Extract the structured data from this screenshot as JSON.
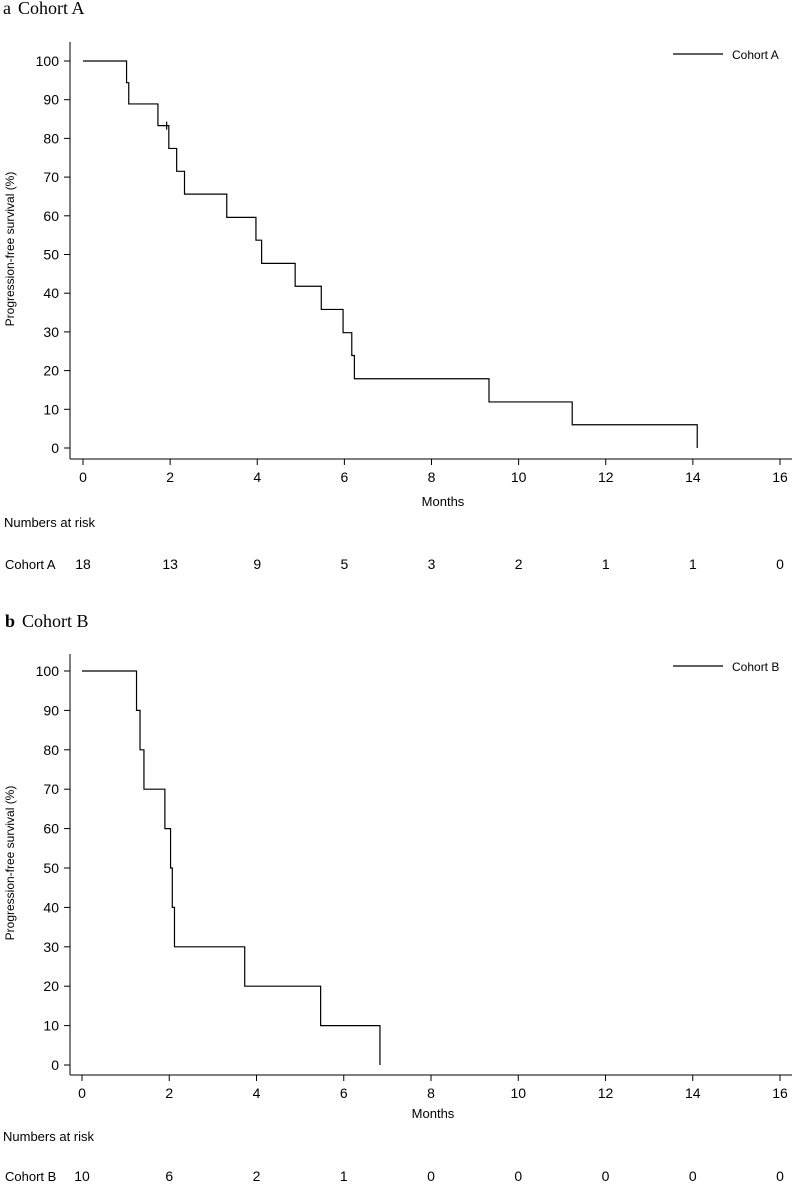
{
  "chart_data": [
    {
      "type": "line",
      "step": true,
      "panel_letter": "a",
      "title": "Cohort A",
      "xlabel": "Months",
      "ylabel": "Progression-free survival (%)",
      "xlim": [
        0,
        16
      ],
      "ylim": [
        0,
        100
      ],
      "xticks": [
        0,
        2,
        4,
        6,
        8,
        10,
        12,
        14,
        16
      ],
      "yticks": [
        0,
        10,
        20,
        30,
        40,
        50,
        60,
        70,
        80,
        90,
        100
      ],
      "legend_position": "top-right",
      "series": [
        {
          "name": "Cohort A",
          "color": "#000000",
          "x": [
            0,
            1.0,
            1.05,
            1.72,
            1.97,
            2.15,
            2.33,
            3.3,
            3.97,
            4.1,
            4.87,
            5.47,
            5.97,
            6.17,
            6.23,
            9.32,
            11.23,
            14.1
          ],
          "y": [
            100,
            94.4,
            88.9,
            83.3,
            77.4,
            71.5,
            65.6,
            59.6,
            53.7,
            47.7,
            41.8,
            35.8,
            29.8,
            23.9,
            17.9,
            11.9,
            6.0,
            0
          ],
          "censor_x": [
            1.92
          ],
          "censor_y": [
            83.3
          ]
        }
      ],
      "risk_table": {
        "heading": "Numbers at risk",
        "row_label": "Cohort A",
        "times": [
          0,
          2,
          4,
          6,
          8,
          10,
          12,
          14,
          16
        ],
        "counts": [
          "18",
          "13",
          "9",
          "5",
          "3",
          "2",
          "1",
          "1",
          "0"
        ]
      }
    },
    {
      "type": "line",
      "step": true,
      "panel_letter": "b",
      "title": "Cohort B",
      "xlabel": "Months",
      "ylabel": "Progression-free survival (%)",
      "xlim": [
        0,
        16
      ],
      "ylim": [
        0,
        100
      ],
      "xticks": [
        0,
        2,
        4,
        6,
        8,
        10,
        12,
        14,
        16
      ],
      "yticks": [
        0,
        10,
        20,
        30,
        40,
        50,
        60,
        70,
        80,
        90,
        100
      ],
      "legend_position": "top-right",
      "series": [
        {
          "name": "Cohort B",
          "color": "#000000",
          "x": [
            0,
            1.25,
            1.33,
            1.42,
            1.9,
            2.03,
            2.07,
            2.12,
            3.73,
            5.47,
            6.83
          ],
          "y": [
            100,
            90,
            80,
            70,
            60,
            50,
            40,
            30,
            20,
            10,
            0
          ],
          "censor_x": [],
          "censor_y": []
        }
      ],
      "risk_table": {
        "heading": "Numbers at risk",
        "row_label": "Cohort B",
        "times": [
          0,
          2,
          4,
          6,
          8,
          10,
          12,
          14,
          16
        ],
        "counts": [
          "10",
          "6",
          "2",
          "1",
          "0",
          "0",
          "0",
          "0",
          "0"
        ]
      }
    }
  ]
}
